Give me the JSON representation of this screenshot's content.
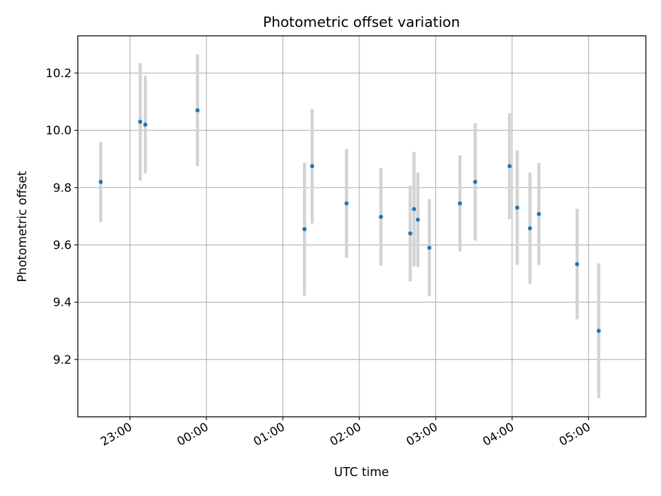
{
  "chart_data": {
    "type": "scatter",
    "title": "Photometric offset variation",
    "xlabel": "UTC time",
    "ylabel": "Photometric offset",
    "x_unit": "UTC time (day-relative, times after midnight on next day)",
    "xlim": [
      "22:19",
      "05:45"
    ],
    "ylim": [
      9.0,
      10.33
    ],
    "x_ticks": [
      "23:00",
      "00:00",
      "01:00",
      "02:00",
      "03:00",
      "04:00",
      "05:00"
    ],
    "y_ticks": [
      9.2,
      9.4,
      9.6,
      9.8,
      10.0,
      10.2
    ],
    "grid": true,
    "legend": "none",
    "colors": {
      "marker": "#1f77b4",
      "errorbar": "#d3d3d3",
      "grid": "#b0b0b0"
    },
    "points": [
      {
        "x": "22:37",
        "y": 9.82,
        "yerr": 0.14
      },
      {
        "x": "23:08",
        "y": 10.03,
        "yerr": 0.205
      },
      {
        "x": "23:12",
        "y": 10.02,
        "yerr": 0.17
      },
      {
        "x": "23:53",
        "y": 10.07,
        "yerr": 0.195
      },
      {
        "x": "01:17",
        "y": 9.655,
        "yerr": 0.232
      },
      {
        "x": "01:23",
        "y": 9.875,
        "yerr": 0.2
      },
      {
        "x": "01:50",
        "y": 9.745,
        "yerr": 0.19
      },
      {
        "x": "02:17",
        "y": 9.698,
        "yerr": 0.17
      },
      {
        "x": "02:40",
        "y": 9.64,
        "yerr": 0.167
      },
      {
        "x": "02:43",
        "y": 9.725,
        "yerr": 0.2
      },
      {
        "x": "02:46",
        "y": 9.688,
        "yerr": 0.165
      },
      {
        "x": "02:55",
        "y": 9.59,
        "yerr": 0.17
      },
      {
        "x": "03:19",
        "y": 9.745,
        "yerr": 0.168
      },
      {
        "x": "03:31",
        "y": 9.82,
        "yerr": 0.205
      },
      {
        "x": "03:58",
        "y": 9.875,
        "yerr": 0.185
      },
      {
        "x": "04:04",
        "y": 9.73,
        "yerr": 0.2
      },
      {
        "x": "04:14",
        "y": 9.658,
        "yerr": 0.195
      },
      {
        "x": "04:21",
        "y": 9.708,
        "yerr": 0.178
      },
      {
        "x": "04:51",
        "y": 9.533,
        "yerr": 0.193
      },
      {
        "x": "05:08",
        "y": 9.3,
        "yerr": 0.235
      }
    ]
  }
}
